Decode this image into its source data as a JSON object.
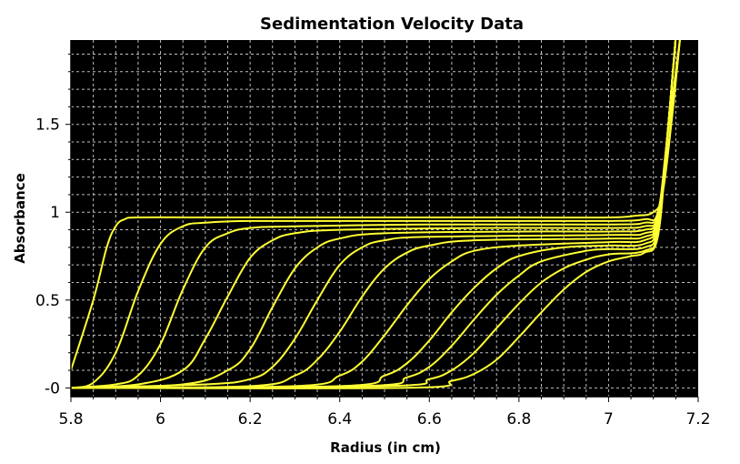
{
  "chart_data": {
    "type": "line",
    "title": "Sedimentation Velocity Data",
    "xlabel": "Radius (in cm)",
    "ylabel": "Absorbance",
    "xlim": [
      5.8,
      7.2
    ],
    "ylim": [
      -0.05,
      1.98
    ],
    "x_ticks": [
      {
        "value": 5.8,
        "label": "5.8"
      },
      {
        "value": 6.0,
        "label": "6"
      },
      {
        "value": 6.2,
        "label": "6.2"
      },
      {
        "value": 6.4,
        "label": "6.4"
      },
      {
        "value": 6.6,
        "label": "6.6"
      },
      {
        "value": 6.8,
        "label": "6.8"
      },
      {
        "value": 7.0,
        "label": "7"
      },
      {
        "value": 7.2,
        "label": "7.2"
      }
    ],
    "y_ticks": [
      {
        "value": 0.0,
        "label": "-0"
      },
      {
        "value": 0.5,
        "label": "0.5"
      },
      {
        "value": 1.0,
        "label": "1"
      },
      {
        "value": 1.5,
        "label": "1.5"
      }
    ],
    "grid": true,
    "background_color": "#000000",
    "grid_color": "#bfbfbf",
    "line_color": "#ffff33",
    "series": [
      {
        "x": [
          5.8,
          5.85,
          5.88,
          5.9,
          5.92,
          5.95,
          6.1,
          6.4,
          6.8,
          7.0,
          7.06,
          7.1,
          7.12,
          7.14,
          7.16
        ],
        "y": [
          0.1,
          0.5,
          0.8,
          0.92,
          0.96,
          0.97,
          0.97,
          0.97,
          0.97,
          0.97,
          0.98,
          1.0,
          1.1,
          1.5,
          2.0
        ]
      },
      {
        "x": [
          5.8,
          5.85,
          5.9,
          5.95,
          6.0,
          6.05,
          6.1,
          6.2,
          6.5,
          6.8,
          7.0,
          7.08,
          7.11,
          7.13,
          7.16
        ],
        "y": [
          0.0,
          0.03,
          0.2,
          0.55,
          0.82,
          0.92,
          0.94,
          0.95,
          0.95,
          0.95,
          0.95,
          0.96,
          1.0,
          1.4,
          2.0
        ]
      },
      {
        "x": [
          5.8,
          5.9,
          5.95,
          6.0,
          6.05,
          6.1,
          6.15,
          6.2,
          6.3,
          6.6,
          7.0,
          7.08,
          7.11,
          7.13,
          7.16
        ],
        "y": [
          0.0,
          0.02,
          0.07,
          0.25,
          0.56,
          0.8,
          0.88,
          0.91,
          0.92,
          0.93,
          0.93,
          0.94,
          0.98,
          1.3,
          2.0
        ]
      },
      {
        "x": [
          5.8,
          5.95,
          6.05,
          6.1,
          6.15,
          6.2,
          6.25,
          6.3,
          6.4,
          6.7,
          7.0,
          7.08,
          7.11,
          7.13,
          7.15
        ],
        "y": [
          0.0,
          0.02,
          0.1,
          0.28,
          0.52,
          0.74,
          0.84,
          0.88,
          0.9,
          0.91,
          0.91,
          0.92,
          0.98,
          1.4,
          2.0
        ]
      },
      {
        "x": [
          5.8,
          6.05,
          6.15,
          6.2,
          6.25,
          6.3,
          6.35,
          6.4,
          6.5,
          6.8,
          7.0,
          7.08,
          7.11,
          7.13,
          7.15
        ],
        "y": [
          0.0,
          0.02,
          0.1,
          0.22,
          0.46,
          0.68,
          0.8,
          0.85,
          0.88,
          0.89,
          0.89,
          0.9,
          0.97,
          1.4,
          2.0
        ]
      },
      {
        "x": [
          5.8,
          6.1,
          6.2,
          6.25,
          6.3,
          6.35,
          6.4,
          6.45,
          6.5,
          6.6,
          7.0,
          7.08,
          7.11,
          7.13,
          7.15
        ],
        "y": [
          0.0,
          0.02,
          0.05,
          0.12,
          0.28,
          0.5,
          0.7,
          0.8,
          0.84,
          0.86,
          0.87,
          0.88,
          0.96,
          1.4,
          2.0
        ]
      },
      {
        "x": [
          5.8,
          6.2,
          6.3,
          6.35,
          6.4,
          6.45,
          6.5,
          6.55,
          6.6,
          6.7,
          7.0,
          7.08,
          7.11,
          7.13,
          7.15
        ],
        "y": [
          0.0,
          0.01,
          0.07,
          0.16,
          0.32,
          0.52,
          0.68,
          0.77,
          0.81,
          0.84,
          0.85,
          0.86,
          0.95,
          1.4,
          2.0
        ]
      },
      {
        "x": [
          5.8,
          6.3,
          6.4,
          6.45,
          6.5,
          6.55,
          6.6,
          6.65,
          6.7,
          6.8,
          7.0,
          7.08,
          7.11,
          7.13,
          7.15
        ],
        "y": [
          0.0,
          0.01,
          0.07,
          0.15,
          0.3,
          0.47,
          0.62,
          0.72,
          0.78,
          0.81,
          0.83,
          0.84,
          0.94,
          1.4,
          2.0
        ]
      },
      {
        "x": [
          5.8,
          6.4,
          6.5,
          6.55,
          6.6,
          6.65,
          6.7,
          6.75,
          6.8,
          6.9,
          7.0,
          7.08,
          7.11,
          7.13,
          7.15
        ],
        "y": [
          0.0,
          0.01,
          0.07,
          0.14,
          0.27,
          0.43,
          0.57,
          0.68,
          0.75,
          0.8,
          0.81,
          0.82,
          0.92,
          1.4,
          2.0
        ]
      },
      {
        "x": [
          5.8,
          6.45,
          6.55,
          6.6,
          6.65,
          6.7,
          6.75,
          6.8,
          6.85,
          6.95,
          7.0,
          7.08,
          7.11,
          7.13,
          7.15
        ],
        "y": [
          0.0,
          0.01,
          0.06,
          0.12,
          0.24,
          0.39,
          0.53,
          0.64,
          0.72,
          0.78,
          0.79,
          0.8,
          0.9,
          1.4,
          2.0
        ]
      },
      {
        "x": [
          5.8,
          6.5,
          6.6,
          6.65,
          6.7,
          6.75,
          6.8,
          6.85,
          6.9,
          6.95,
          7.0,
          7.08,
          7.11,
          7.13,
          7.15
        ],
        "y": [
          0.0,
          0.01,
          0.05,
          0.1,
          0.2,
          0.34,
          0.48,
          0.6,
          0.68,
          0.73,
          0.76,
          0.78,
          0.88,
          1.4,
          2.0
        ]
      },
      {
        "x": [
          5.8,
          6.55,
          6.65,
          6.7,
          6.75,
          6.8,
          6.85,
          6.9,
          6.95,
          7.0,
          7.05,
          7.08,
          7.11,
          7.13,
          7.15
        ],
        "y": [
          0.0,
          0.0,
          0.04,
          0.08,
          0.16,
          0.29,
          0.43,
          0.56,
          0.66,
          0.72,
          0.75,
          0.77,
          0.86,
          1.4,
          2.0
        ]
      }
    ]
  }
}
